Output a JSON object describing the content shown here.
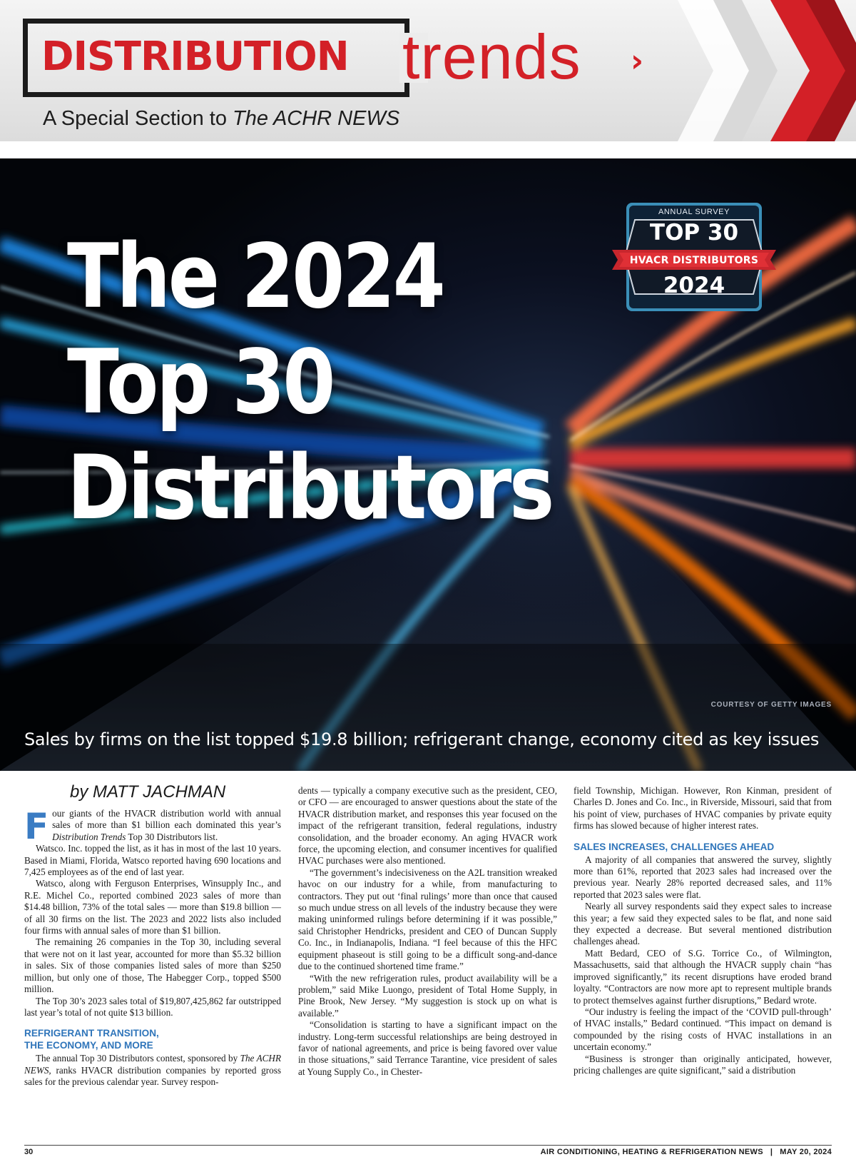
{
  "masthead": {
    "logo_bold": "DISTRIBUTION",
    "logo_light": "trends",
    "logo_chevron": "›",
    "tagline_prefix": "A Special Section to ",
    "tagline_publication": "The ACHR NEWS"
  },
  "hero": {
    "title_lines": [
      "The 2024",
      "Top 30",
      "Distributors"
    ],
    "photo_credit": "COURTESY OF GETTY IMAGES",
    "deck": "Sales by firms on the list topped $19.8 billion; refrigerant change, economy cited as key issues",
    "badge": {
      "label": "ANNUAL SURVEY",
      "top": "TOP 30",
      "ribbon": "HVACR DISTRIBUTORS",
      "year": "2024"
    }
  },
  "article": {
    "byline": "by MATT JACHMAN",
    "dropcap": "F",
    "col1": {
      "p1_rest": "our giants of the HVACR distribution world with annual sales of more than $1 billion each dominated this year’s ",
      "p1_em": "Distribution Trends",
      "p1_end": " Top 30 Distributors list.",
      "p2": "Watsco. Inc. topped the list, as it has in most of the last 10 years. Based in Miami, Florida, Watsco reported having 690 locations and 7,425 employees as of the end of last year.",
      "p3": "Watsco, along with Ferguson Enterprises, Winsupply Inc., and R.E. Michel Co., reported combined 2023 sales of more than $14.48 billion, 73% of the total sales — more than $19.8 billion — of all 30 firms on the list. The 2023 and 2022 lists also included four firms with annual sales of more than $1 billion.",
      "p4": "The remaining 26 companies in the Top 30, including several that were not on it last year, accounted for more than $5.32 billion in sales. Six of those companies listed sales of more than $250 million, but only one of those, The Habegger Corp., topped $500 million.",
      "p5": "The Top 30’s 2023 sales total of $19,807,425,862 far outstripped last year’s total of not quite $13 billion.",
      "subhead1_line1": "REFRIGERANT TRANSITION,",
      "subhead1_line2": "THE ECONOMY, AND MORE",
      "p6_start": "The annual Top 30 Distributors contest, sponsored by ",
      "p6_em": "The ACHR NEWS,",
      "p6_end": " ranks HVACR distribution companies by reported gross sales for the previous calendar year. Survey respon-"
    },
    "col2": {
      "p1": "dents — typically a company executive such as the president, CEO, or CFO — are encouraged to answer questions about the state of the HVACR distribution market, and responses this year focused on the impact of the refrigerant transition, federal regulations, industry consolidation, and the broader economy. An aging HVACR work force, the upcoming election, and consumer incentives for qualified HVAC purchases were also mentioned.",
      "p2": "“The government’s indecisiveness on the A2L transition wreaked havoc on our industry for a while, from manufacturing to contractors. They put out ‘final rulings’ more than once that caused so much undue stress on all levels of the industry because they were making uninformed rulings before determining if it was possible,” said Christopher Hendricks, president and CEO of Duncan Supply Co. Inc., in Indianapolis, Indiana. “I feel because of this the HFC equipment phaseout is still going to be a difficult song-and-dance due to the continued shortened time frame.”",
      "p3": "“With the new refrigeration rules, product availability will be a problem,” said Mike Luongo, president of Total Home Supply, in Pine Brook, New Jersey. “My suggestion is stock up on what is available.”",
      "p4": "“Consolidation is starting to have a significant impact on the industry. Long-term successful relationships are being destroyed in favor of national agreements, and price is being favored over value in those situations,” said Terrance Tarantine, vice president of sales at Young Supply Co., in Chester-"
    },
    "col3": {
      "p1": "field Township, Michigan. However, Ron Kinman, president of Charles D. Jones and Co. Inc., in Riverside, Missouri, said that from his point of view, purchases of HVAC companies by private equity firms has slowed because of higher interest rates.",
      "subhead2": "SALES INCREASES, CHALLENGES AHEAD",
      "p2": "A majority of all companies that answered the survey, slightly more than 61%, reported that 2023 sales had increased over the previous year. Nearly 28% reported decreased sales, and 11% reported that 2023 sales were flat.",
      "p3": "Nearly all survey respondents said they expect sales to increase this year; a few said they expected sales to be flat, and none said they expected a decrease. But several mentioned distribution challenges ahead.",
      "p4": "Matt Bedard, CEO of S.G. Torrice Co., of Wilmington, Massachusetts, said that although the HVACR supply chain “has improved significantly,” its recent disruptions have eroded brand loyalty. “Contractors are now more apt to represent multiple brands to protect themselves against further disruptions,” Bedard wrote.",
      "p5": "“Our industry is feeling the impact of the ‘COVID pull-through’ of HVAC installs,” Bedard continued. “This impact on demand is compounded by the rising costs of HVAC installations in an uncertain economy.”",
      "p6": "“Business is stronger than originally anticipated, however, pricing challenges are quite significant,” said a distribution"
    }
  },
  "footer": {
    "page_number": "30",
    "publication": "AIR CONDITIONING, HEATING & REFRIGERATION NEWS",
    "separator": "|",
    "date": "MAY 20, 2024"
  },
  "colors": {
    "brand_red": "#d32027",
    "subhead_blue": "#2f75ba",
    "dropcap_blue": "#3a7cc3"
  }
}
